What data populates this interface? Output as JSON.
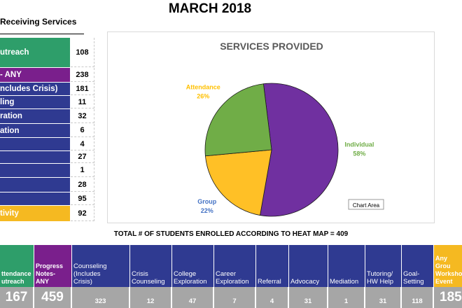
{
  "title": "MARCH 2018",
  "left_table": {
    "header": "Receiving Services",
    "rows": [
      {
        "label": "utreach",
        "value": "108",
        "color": "#2e9e6a"
      },
      {
        "label": "- ANY",
        "value": "238",
        "color": "#7a1f8c"
      },
      {
        "label": "ncludes Crisis)",
        "value": "181",
        "color": "#2f3a91"
      },
      {
        "label": "ling",
        "value": "11",
        "color": "#2f3a91"
      },
      {
        "label": "ration",
        "value": "32",
        "color": "#2f3a91"
      },
      {
        "label": "ation",
        "value": "6",
        "color": "#2f3a91"
      },
      {
        "label": "",
        "value": "4",
        "color": "#2f3a91"
      },
      {
        "label": "",
        "value": "27",
        "color": "#2f3a91"
      },
      {
        "label": "",
        "value": "1",
        "color": "#2f3a91"
      },
      {
        "label": "",
        "value": "28",
        "color": "#2f3a91"
      },
      {
        "label": "",
        "value": "95",
        "color": "#2f3a91"
      },
      {
        "label": "tivity",
        "value": "92",
        "color": "#f5b921"
      }
    ]
  },
  "chart_data": {
    "type": "pie",
    "title": "SERVICES PROVIDED",
    "slices": [
      {
        "name": "Individual",
        "value": 58,
        "label": "58%",
        "color": "#7030a0",
        "label_color": "#70ad47"
      },
      {
        "name": "Group",
        "value": 22,
        "label": "22%",
        "color": "#ffc026",
        "label_color": "#4472c4"
      },
      {
        "name": "Attendance",
        "value": 26,
        "label": "26%",
        "color": "#70ad47",
        "label_color": "#ffc000"
      }
    ],
    "start_angle_deg": -7,
    "tooltip": "Chart Area"
  },
  "heat_map": {
    "title": "TOTAL # OF STUDENTS ENROLLED ACCORDING TO HEAT MAP = 409",
    "cells": [
      {
        "label": "ttendance\nutreach",
        "value": "167",
        "color": "#2e9e6a",
        "big": true
      },
      {
        "label": "Progress\nNotes-\nANY",
        "value": "459",
        "color": "#7a1f8c",
        "big": true
      },
      {
        "label": "Counseling\n(Includes\nCrisis)",
        "value": "323",
        "color": "#2f3a91",
        "big": false
      },
      {
        "label": "Crisis\nCounseling",
        "value": "12",
        "color": "#2f3a91",
        "big": false
      },
      {
        "label": "College\nExploration",
        "value": "47",
        "color": "#2f3a91",
        "big": false
      },
      {
        "label": "Career\nExploration",
        "value": "7",
        "color": "#2f3a91",
        "big": false
      },
      {
        "label": "Referral",
        "value": "4",
        "color": "#2f3a91",
        "big": false
      },
      {
        "label": "Advocacy",
        "value": "31",
        "color": "#2f3a91",
        "big": false
      },
      {
        "label": "Mediation",
        "value": "1",
        "color": "#2f3a91",
        "big": false
      },
      {
        "label": "Tutoring/\nHW Help",
        "value": "31",
        "color": "#2f3a91",
        "big": false
      },
      {
        "label": "Goal-\nSetting",
        "value": "118",
        "color": "#2f3a91",
        "big": false
      },
      {
        "label": "Any Grou\nWorksho\nEvent",
        "value": "185",
        "color": "#f5b921",
        "big": true
      }
    ]
  }
}
